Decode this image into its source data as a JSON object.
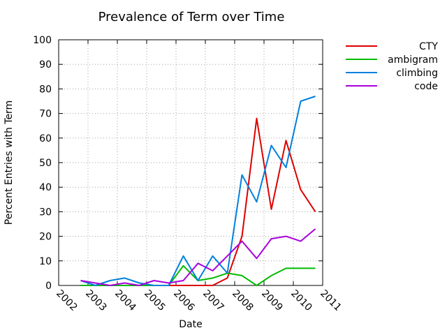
{
  "chart_data": {
    "type": "line",
    "title": "Prevalence of Term over Time",
    "xlabel": "Date",
    "ylabel": "Percent Entries with Term",
    "xlim": [
      2002,
      2011
    ],
    "ylim": [
      0,
      100
    ],
    "x_ticks": [
      "2002",
      "2003",
      "2004",
      "2005",
      "2006",
      "2007",
      "2008",
      "2009",
      "2010",
      "2011"
    ],
    "y_ticks": [
      "0",
      "10",
      "20",
      "30",
      "40",
      "50",
      "60",
      "70",
      "80",
      "90",
      "100"
    ],
    "grid": true,
    "legend_position": "top-right, outside plot",
    "x": [
      2002.75,
      2003.25,
      2003.75,
      2004.25,
      2004.75,
      2005.25,
      2005.75,
      2006.25,
      2006.75,
      2007.25,
      2007.75,
      2008.25,
      2008.75,
      2009.25,
      2009.75,
      2010.25,
      2010.75
    ],
    "series": [
      {
        "name": "CTY",
        "color": "#dd0000",
        "values": [
          0,
          0,
          0,
          0,
          0,
          0,
          0,
          0,
          0,
          0,
          3,
          20,
          68,
          31,
          59,
          39,
          30
        ]
      },
      {
        "name": "ambigram",
        "color": "#00bb00",
        "values": [
          0,
          0,
          0,
          0,
          0,
          0,
          0,
          8,
          2,
          3,
          5,
          4,
          0,
          4,
          7,
          7,
          7
        ]
      },
      {
        "name": "climbing",
        "color": "#0080dd",
        "values": [
          2,
          0,
          2,
          3,
          1,
          0,
          0,
          12,
          2,
          12,
          5,
          45,
          34,
          57,
          48,
          75,
          77
        ]
      },
      {
        "name": "code",
        "color": "#aa00dd",
        "values": [
          2,
          1,
          0,
          1,
          0,
          2,
          1,
          2,
          9,
          6,
          12,
          18,
          11,
          19,
          20,
          18,
          23
        ]
      }
    ]
  }
}
